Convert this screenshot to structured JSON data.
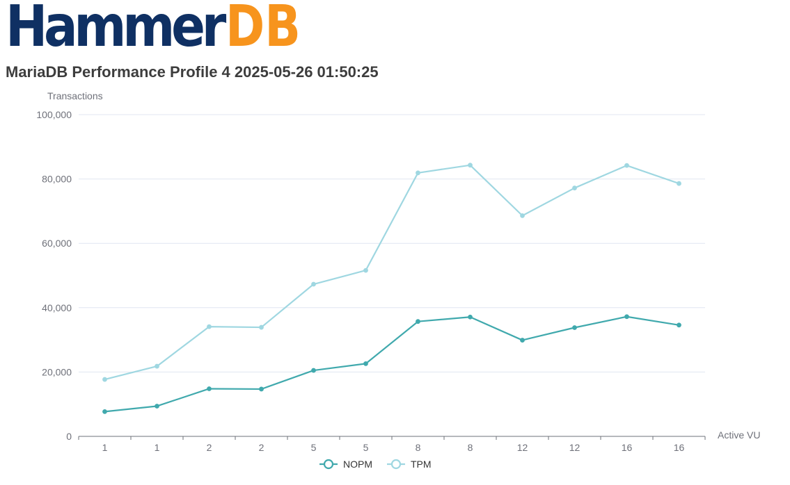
{
  "logo": {
    "text_left": "Hammer",
    "text_right": "DB",
    "color_left": "#0f3063",
    "color_right": "#f7941d"
  },
  "title": "MariaDB Performance Profile 4 2025-05-26 01:50:25",
  "chart_data": {
    "type": "line",
    "ylabel": "Transactions",
    "xlabel": "Active VU",
    "categories": [
      "1",
      "1",
      "2",
      "2",
      "5",
      "5",
      "8",
      "8",
      "12",
      "12",
      "16",
      "16"
    ],
    "ylim": [
      0,
      100000
    ],
    "yticks": [
      0,
      20000,
      40000,
      60000,
      80000,
      100000
    ],
    "ytick_labels": [
      "0",
      "20,000",
      "40,000",
      "60,000",
      "80,000",
      "100,000"
    ],
    "grid": true,
    "legend_position": "bottom-center",
    "series": [
      {
        "name": "NOPM",
        "color": "#40a9ad",
        "values": [
          7700,
          9400,
          14800,
          14700,
          20500,
          22600,
          35700,
          37100,
          29900,
          33800,
          37200,
          34600
        ]
      },
      {
        "name": "TPM",
        "color": "#9fd7e1",
        "values": [
          17700,
          21800,
          34100,
          33900,
          47300,
          51600,
          81900,
          84300,
          68600,
          77200,
          84200,
          78600
        ]
      }
    ]
  }
}
